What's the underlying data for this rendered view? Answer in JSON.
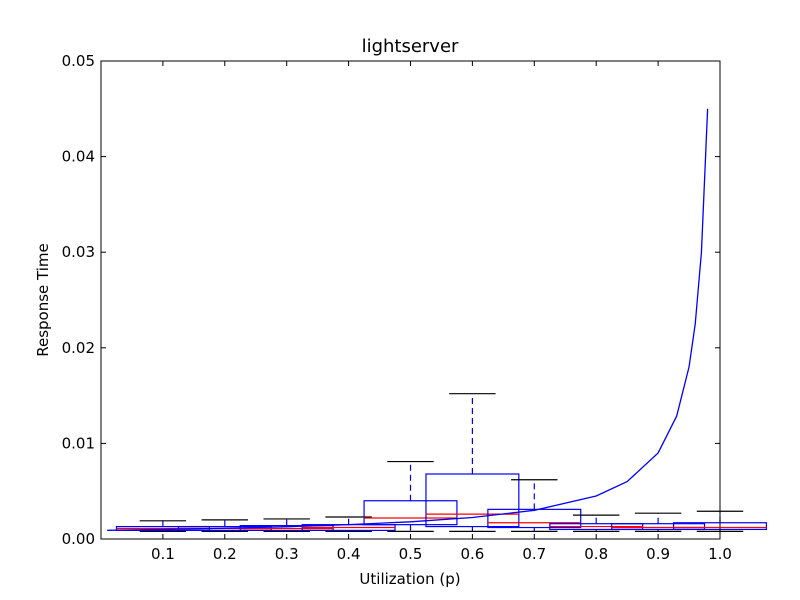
{
  "chart_data": {
    "type": "box",
    "title": "lightserver",
    "xlabel": "Utilization (p)",
    "ylabel": "Response Time",
    "xlim": [
      0.0,
      1.0
    ],
    "ylim": [
      0.0,
      0.05
    ],
    "x_ticks": [
      "0.1",
      "0.2",
      "0.3",
      "0.4",
      "0.5",
      "0.6",
      "0.7",
      "0.8",
      "0.9",
      "1.0"
    ],
    "y_ticks": [
      "0.00",
      "0.01",
      "0.02",
      "0.03",
      "0.04",
      "0.05"
    ],
    "grid": false,
    "box_series": {
      "name": "",
      "box_half_width": 0.075,
      "cap_half_width": 0.0375,
      "boxes": [
        {
          "x": 0.1,
          "whisker_low": 0.0008,
          "q1": 0.0009,
          "median": 0.0011,
          "q3": 0.0013,
          "whisker_high": 0.0019
        },
        {
          "x": 0.2,
          "whisker_low": 0.0008,
          "q1": 0.0009,
          "median": 0.0011,
          "q3": 0.0013,
          "whisker_high": 0.002
        },
        {
          "x": 0.3,
          "whisker_low": 0.0008,
          "q1": 0.0009,
          "median": 0.0011,
          "q3": 0.0014,
          "whisker_high": 0.0021
        },
        {
          "x": 0.4,
          "whisker_low": 0.0008,
          "q1": 0.0009,
          "median": 0.0012,
          "q3": 0.0015,
          "whisker_high": 0.0023
        },
        {
          "x": 0.5,
          "whisker_low": 0.0008,
          "q1": 0.0015,
          "median": 0.0022,
          "q3": 0.004,
          "whisker_high": 0.0081
        },
        {
          "x": 0.6,
          "whisker_low": 0.0008,
          "q1": 0.0013,
          "median": 0.0026,
          "q3": 0.0068,
          "whisker_high": 0.0152
        },
        {
          "x": 0.7,
          "whisker_low": 0.0008,
          "q1": 0.0012,
          "median": 0.0017,
          "q3": 0.0031,
          "whisker_high": 0.0062
        },
        {
          "x": 0.8,
          "whisker_low": 0.0008,
          "q1": 0.001,
          "median": 0.0013,
          "q3": 0.0016,
          "whisker_high": 0.0025
        },
        {
          "x": 0.9,
          "whisker_low": 0.0008,
          "q1": 0.001,
          "median": 0.0012,
          "q3": 0.0016,
          "whisker_high": 0.0027
        },
        {
          "x": 1.0,
          "whisker_low": 0.0008,
          "q1": 0.001,
          "median": 0.0012,
          "q3": 0.0017,
          "whisker_high": 0.0029
        }
      ]
    },
    "curve_series": {
      "name": "",
      "type": "line",
      "x": [
        0.01,
        0.1,
        0.2,
        0.3,
        0.4,
        0.5,
        0.6,
        0.7,
        0.8,
        0.85,
        0.9,
        0.93,
        0.95,
        0.96,
        0.97,
        0.98
      ],
      "y": [
        0.000909,
        0.001,
        0.001125,
        0.001286,
        0.0015,
        0.0018,
        0.00225,
        0.003,
        0.0045,
        0.006,
        0.009,
        0.012857,
        0.018,
        0.0225,
        0.03,
        0.045
      ]
    },
    "colors": {
      "box": "#0000ff",
      "median": "#ff0000",
      "cap": "#000000",
      "curve": "#0000ff",
      "axes": "#000000"
    }
  }
}
